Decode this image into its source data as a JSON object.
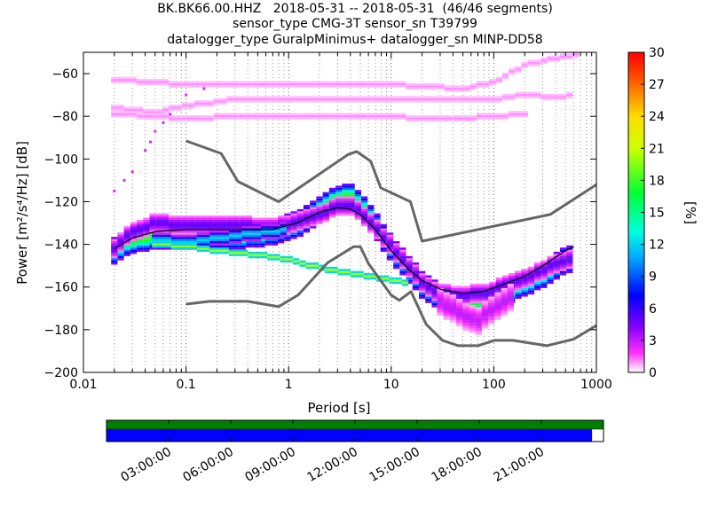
{
  "title_lines": [
    "BK.BK66.00.HHZ   2018-05-31 -- 2018-05-31  (46/46 segments)",
    "sensor_type CMG-3T sensor_sn T39799",
    "datalogger_type GuralpMinimus+ datalogger_sn MINP-DD58"
  ],
  "chart_data": {
    "type": "heatmap",
    "xlabel": "Period [s]",
    "ylabel": "Power [m²/s⁴/Hz] [dB]",
    "x_scale": "log",
    "xlim": [
      0.01,
      1000
    ],
    "ylim": [
      -200,
      -50
    ],
    "x_ticks": [
      "0.01",
      "0.1",
      "1",
      "10",
      "100",
      "1000"
    ],
    "y_ticks": [
      "-60",
      "-80",
      "-100",
      "-120",
      "-140",
      "-160",
      "-180",
      "-200"
    ],
    "colorbar": {
      "label": "[%]",
      "range": [
        0,
        30
      ],
      "ticks": [
        "30",
        "27",
        "24",
        "21",
        "18",
        "15",
        "12",
        "9",
        "6",
        "3",
        "0"
      ]
    },
    "series": [
      {
        "role": "NHNM",
        "color": "#666666",
        "points": [
          [
            0.1,
            -91.5
          ],
          [
            0.22,
            -97.4
          ],
          [
            0.32,
            -110.5
          ],
          [
            0.8,
            -120
          ],
          [
            3.8,
            -97.9
          ],
          [
            4.6,
            -96.5
          ],
          [
            6.3,
            -101
          ],
          [
            7.9,
            -113.5
          ],
          [
            15.4,
            -120
          ],
          [
            20,
            -138.5
          ],
          [
            354.8,
            -126
          ],
          [
            1000,
            -112
          ]
        ]
      },
      {
        "role": "NLNM",
        "color": "#666666",
        "points": [
          [
            0.1,
            -168
          ],
          [
            0.17,
            -166.7
          ],
          [
            0.4,
            -166.7
          ],
          [
            0.8,
            -169.2
          ],
          [
            1.24,
            -163.7
          ],
          [
            2.4,
            -148.6
          ],
          [
            4.3,
            -141.1
          ],
          [
            5,
            -141.1
          ],
          [
            6,
            -149
          ],
          [
            10,
            -163.8
          ],
          [
            12,
            -166.2
          ],
          [
            15.6,
            -162.1
          ],
          [
            21.9,
            -177.5
          ],
          [
            31.6,
            -185
          ],
          [
            45,
            -187.5
          ],
          [
            70,
            -187.5
          ],
          [
            101,
            -185
          ],
          [
            154,
            -185
          ],
          [
            328,
            -187.5
          ],
          [
            600,
            -184.4
          ],
          [
            1000,
            -178
          ]
        ]
      },
      {
        "role": "mode",
        "color": "#000000",
        "points": [
          [
            0.02,
            -142
          ],
          [
            0.03,
            -137
          ],
          [
            0.05,
            -134
          ],
          [
            0.1,
            -133
          ],
          [
            0.3,
            -133
          ],
          [
            0.7,
            -133
          ],
          [
            1.2,
            -130
          ],
          [
            2,
            -125
          ],
          [
            3,
            -122.8
          ],
          [
            4,
            -123.5
          ],
          [
            5,
            -126
          ],
          [
            7,
            -133
          ],
          [
            10,
            -143
          ],
          [
            15,
            -152
          ],
          [
            20,
            -157
          ],
          [
            30,
            -161
          ],
          [
            50,
            -163
          ],
          [
            80,
            -162
          ],
          [
            120,
            -159
          ],
          [
            200,
            -155
          ],
          [
            300,
            -150
          ],
          [
            400,
            -146
          ],
          [
            500,
            -143
          ],
          [
            600,
            -141
          ]
        ]
      }
    ],
    "density_bands": [
      {
        "points": [
          [
            0.02,
            -143
          ],
          [
            0.03,
            -138
          ],
          [
            0.05,
            -136
          ],
          [
            0.1,
            -136
          ],
          [
            0.3,
            -136
          ],
          [
            0.7,
            -134
          ],
          [
            1.2,
            -131
          ],
          [
            2,
            -124
          ],
          [
            3,
            -119
          ],
          [
            4,
            -118
          ],
          [
            5,
            -122
          ],
          [
            7,
            -131
          ],
          [
            10,
            -142
          ],
          [
            15,
            -152
          ],
          [
            20,
            -159
          ],
          [
            30,
            -165
          ],
          [
            50,
            -168
          ],
          [
            80,
            -167
          ],
          [
            120,
            -163
          ],
          [
            200,
            -158
          ],
          [
            300,
            -154
          ],
          [
            400,
            -150
          ],
          [
            600,
            -146
          ]
        ],
        "spread": 6,
        "pct": 18
      },
      {
        "points": [
          [
            0.02,
            -142
          ],
          [
            0.03,
            -134
          ],
          [
            0.05,
            -130
          ],
          [
            0.1,
            -131
          ],
          [
            0.3,
            -131
          ],
          [
            0.7,
            -132
          ],
          [
            1.2,
            -130
          ],
          [
            2,
            -126
          ],
          [
            3,
            -122
          ],
          [
            4,
            -122
          ],
          [
            5,
            -125
          ],
          [
            7,
            -132
          ],
          [
            10,
            -141
          ],
          [
            15,
            -151
          ],
          [
            20,
            -158
          ],
          [
            30,
            -163
          ],
          [
            50,
            -164
          ],
          [
            80,
            -163
          ],
          [
            120,
            -160
          ],
          [
            200,
            -156
          ],
          [
            300,
            -152
          ],
          [
            400,
            -149
          ],
          [
            600,
            -147
          ]
        ],
        "spread": 4,
        "pct": 5
      },
      {
        "points": [
          [
            0.05,
            -138
          ],
          [
            0.1,
            -139
          ],
          [
            0.3,
            -136
          ],
          [
            0.7,
            -134
          ],
          [
            1,
            -133
          ]
        ],
        "spread": 3,
        "pct": 12
      },
      {
        "points": [
          [
            30,
            -167
          ],
          [
            50,
            -173
          ],
          [
            70,
            -176
          ],
          [
            100,
            -170
          ],
          [
            150,
            -165
          ]
        ],
        "spread": 6,
        "pct": 3
      },
      {
        "points": [
          [
            0.05,
            -140
          ],
          [
            0.1,
            -141
          ],
          [
            0.2,
            -143
          ],
          [
            0.5,
            -145
          ],
          [
            1,
            -147
          ],
          [
            2,
            -151
          ],
          [
            5,
            -154
          ],
          [
            8,
            -156
          ],
          [
            10,
            -157
          ],
          [
            15,
            -158
          ]
        ],
        "spread": 1,
        "pct": 20
      },
      {
        "points": [
          [
            0.02,
            -63
          ],
          [
            0.05,
            -64
          ],
          [
            0.1,
            -65
          ],
          [
            0.3,
            -65
          ],
          [
            1,
            -65
          ],
          [
            3,
            -65
          ],
          [
            10,
            -65
          ],
          [
            20,
            -66
          ],
          [
            50,
            -67
          ],
          [
            100,
            -64
          ],
          [
            150,
            -59
          ],
          [
            200,
            -56
          ],
          [
            300,
            -54
          ],
          [
            500,
            -52
          ],
          [
            700,
            -51
          ]
        ],
        "spread": 1,
        "pct": 1
      },
      {
        "points": [
          [
            0.02,
            -76
          ],
          [
            0.05,
            -78
          ],
          [
            0.1,
            -75
          ],
          [
            0.3,
            -72
          ],
          [
            1,
            -72
          ],
          [
            3,
            -72
          ],
          [
            10,
            -72
          ],
          [
            30,
            -72
          ],
          [
            100,
            -72
          ],
          [
            200,
            -70
          ],
          [
            400,
            -71
          ],
          [
            600,
            -70
          ]
        ],
        "spread": 1,
        "pct": 1
      },
      {
        "points": [
          [
            0.02,
            -79
          ],
          [
            0.05,
            -80
          ],
          [
            0.1,
            -81
          ],
          [
            0.3,
            -80
          ],
          [
            1,
            -80
          ],
          [
            3,
            -80
          ],
          [
            10,
            -80
          ],
          [
            20,
            -81
          ],
          [
            50,
            -81
          ],
          [
            100,
            -80
          ],
          [
            200,
            -79
          ]
        ],
        "spread": 1,
        "pct": 1
      }
    ],
    "scatter_points": [
      [
        0.02,
        -115
      ],
      [
        0.025,
        -110
      ],
      [
        0.03,
        -106
      ],
      [
        0.04,
        -96
      ],
      [
        0.045,
        -92
      ],
      [
        0.05,
        -87
      ],
      [
        0.06,
        -83
      ],
      [
        0.07,
        -79
      ],
      [
        0.1,
        -70
      ],
      [
        0.15,
        -67
      ]
    ]
  },
  "timeline": {
    "labels": [
      "03:00:00",
      "06:00:00",
      "09:00:00",
      "12:00:00",
      "15:00:00",
      "18:00:00",
      "21:00:00"
    ],
    "coverage_fraction": 0.977,
    "colors": {
      "top": "#008000",
      "bottom": "#0000ff"
    }
  }
}
